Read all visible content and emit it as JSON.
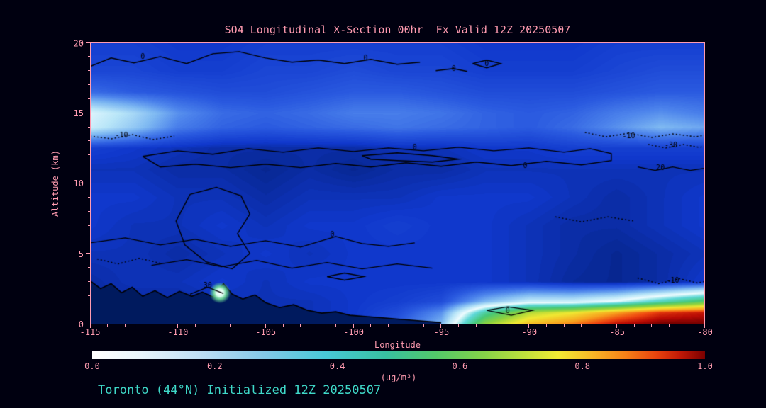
{
  "colors": {
    "background": "#000010",
    "accent_pink": "#ff9bb0",
    "footer_teal": "#3fd9c9",
    "contour_black": "#000000",
    "terrain_navy": "#001a5e"
  },
  "footer": {
    "text": "Toronto (44°N) Initialized 12Z 20250507"
  },
  "axes": {
    "x": {
      "label": "Longitude",
      "ticks": [
        "-115",
        "-110",
        "-105",
        "-100",
        "-95",
        "-90",
        "-85",
        "-80"
      ]
    },
    "y": {
      "label": "Altitude (km)",
      "ticks": [
        "0",
        "5",
        "10",
        "15",
        "20"
      ]
    }
  },
  "colorbar": {
    "ticks": [
      "0.0",
      "0.2",
      "0.4",
      "0.6",
      "0.8",
      "1.0"
    ],
    "units": "(ug/m³)",
    "gradient": [
      [
        0,
        "#ffffff"
      ],
      [
        0.08,
        "#e8f4fc"
      ],
      [
        0.18,
        "#bcdcf4"
      ],
      [
        0.28,
        "#84c8e8"
      ],
      [
        0.38,
        "#48c8d8"
      ],
      [
        0.48,
        "#38c0a0"
      ],
      [
        0.56,
        "#52c86a"
      ],
      [
        0.64,
        "#86d348"
      ],
      [
        0.72,
        "#cce33a"
      ],
      [
        0.76,
        "#f2ec34"
      ],
      [
        0.82,
        "#f8b226"
      ],
      [
        0.87,
        "#f68018"
      ],
      [
        0.92,
        "#e8440e"
      ],
      [
        0.96,
        "#c01806"
      ],
      [
        1,
        "#7a0000"
      ]
    ]
  },
  "chart_data": {
    "type": "heatmap",
    "title": "SO4 Longitudinal X-Section 00hr  Fx Valid 12Z 20250507",
    "xlabel": "Longitude",
    "ylabel": "Altitude (km)",
    "units": "ug/m³",
    "x_range": [
      -115,
      -80
    ],
    "y_range": [
      0,
      20
    ],
    "colorbar_range": [
      0.0,
      1.0
    ],
    "lons": [
      -115,
      -112.5,
      -110,
      -107.5,
      -105,
      -102.5,
      -100,
      -97.5,
      -95,
      -92.5,
      -90,
      -87.5,
      -85,
      -82.5,
      -80
    ],
    "alts": [
      0,
      0.8,
      1.6,
      3,
      5,
      7,
      9,
      11,
      12.5,
      14,
      15,
      16.5,
      18,
      20
    ],
    "values": [
      [
        0.05,
        0.05,
        0.05,
        0.05,
        0.06,
        0.06,
        0.07,
        0.12,
        0.22,
        0.62,
        0.78,
        0.85,
        0.96,
        1.0,
        1.0
      ],
      [
        0.05,
        0.05,
        0.05,
        0.05,
        0.06,
        0.06,
        0.07,
        0.1,
        0.18,
        0.48,
        0.66,
        0.72,
        0.82,
        0.92,
        0.95
      ],
      [
        0.05,
        0.05,
        0.05,
        0.06,
        0.06,
        0.06,
        0.07,
        0.08,
        0.1,
        0.22,
        0.3,
        0.3,
        0.35,
        0.45,
        0.55
      ],
      [
        0.05,
        0.06,
        0.06,
        0.07,
        0.06,
        0.07,
        0.07,
        0.07,
        0.07,
        0.07,
        0.06,
        0.045,
        0.04,
        0.05,
        0.07
      ],
      [
        0.06,
        0.06,
        0.05,
        0.06,
        0.07,
        0.06,
        0.07,
        0.07,
        0.07,
        0.07,
        0.06,
        0.05,
        0.04,
        0.05,
        0.06
      ],
      [
        0.07,
        0.06,
        0.06,
        0.07,
        0.06,
        0.07,
        0.07,
        0.08,
        0.07,
        0.07,
        0.06,
        0.05,
        0.05,
        0.06,
        0.07
      ],
      [
        0.07,
        0.07,
        0.06,
        0.06,
        0.05,
        0.06,
        0.06,
        0.06,
        0.07,
        0.07,
        0.07,
        0.06,
        0.05,
        0.06,
        0.07
      ],
      [
        0.06,
        0.06,
        0.05,
        0.05,
        0.04,
        0.05,
        0.04,
        0.05,
        0.05,
        0.06,
        0.06,
        0.06,
        0.06,
        0.06,
        0.06
      ],
      [
        0.08,
        0.07,
        0.06,
        0.05,
        0.05,
        0.05,
        0.05,
        0.06,
        0.06,
        0.07,
        0.07,
        0.08,
        0.08,
        0.08,
        0.08
      ],
      [
        0.3,
        0.24,
        0.16,
        0.13,
        0.12,
        0.13,
        0.14,
        0.15,
        0.14,
        0.13,
        0.12,
        0.14,
        0.18,
        0.22,
        0.2
      ],
      [
        0.32,
        0.26,
        0.18,
        0.14,
        0.13,
        0.14,
        0.16,
        0.16,
        0.15,
        0.13,
        0.12,
        0.13,
        0.16,
        0.18,
        0.16
      ],
      [
        0.14,
        0.12,
        0.11,
        0.1,
        0.1,
        0.11,
        0.12,
        0.12,
        0.11,
        0.1,
        0.1,
        0.1,
        0.11,
        0.12,
        0.12
      ],
      [
        0.09,
        0.09,
        0.08,
        0.08,
        0.09,
        0.09,
        0.1,
        0.09,
        0.09,
        0.08,
        0.08,
        0.08,
        0.09,
        0.1,
        0.1
      ],
      [
        0.08,
        0.08,
        0.07,
        0.07,
        0.08,
        0.08,
        0.08,
        0.08,
        0.08,
        0.07,
        0.07,
        0.07,
        0.08,
        0.08,
        0.08
      ]
    ],
    "colormap": [
      [
        0,
        "#001850"
      ],
      [
        0.035,
        "#062488"
      ],
      [
        0.07,
        "#1038cc"
      ],
      [
        0.12,
        "#2a5ae0"
      ],
      [
        0.17,
        "#4f86ec"
      ],
      [
        0.22,
        "#7fb9f2"
      ],
      [
        0.28,
        "#b9e6f8"
      ],
      [
        0.34,
        "#eefcff"
      ],
      [
        0.42,
        "#5fd8d8"
      ],
      [
        0.52,
        "#46c878"
      ],
      [
        0.62,
        "#8ed23e"
      ],
      [
        0.72,
        "#f0e832"
      ],
      [
        0.82,
        "#f8a01e"
      ],
      [
        0.9,
        "#ee4410"
      ],
      [
        0.96,
        "#b80a04"
      ],
      [
        1,
        "#700000"
      ]
    ],
    "terrain": [
      [
        -115,
        3.05
      ],
      [
        -114.4,
        2.5
      ],
      [
        -113.8,
        2.85
      ],
      [
        -113.2,
        2.2
      ],
      [
        -112.6,
        2.6
      ],
      [
        -112,
        1.95
      ],
      [
        -111.3,
        2.35
      ],
      [
        -110.6,
        1.85
      ],
      [
        -109.9,
        2.3
      ],
      [
        -109.2,
        1.95
      ],
      [
        -108.6,
        2.25
      ],
      [
        -108,
        1.9
      ],
      [
        -107.4,
        2.85
      ],
      [
        -106.9,
        2.1
      ],
      [
        -106.3,
        1.75
      ],
      [
        -105.6,
        2.05
      ],
      [
        -105,
        1.5
      ],
      [
        -104.2,
        1.15
      ],
      [
        -103.4,
        1.35
      ],
      [
        -102.6,
        0.95
      ],
      [
        -101.8,
        0.75
      ],
      [
        -101,
        0.85
      ],
      [
        -100.2,
        0.6
      ],
      [
        -99.2,
        0.5
      ],
      [
        -98.2,
        0.4
      ],
      [
        -97.2,
        0.3
      ],
      [
        -96.2,
        0.2
      ],
      [
        -95,
        0.08
      ]
    ],
    "hotspot": {
      "lon": -107.6,
      "alt": 2.2,
      "radius_px": 15,
      "stops": [
        [
          0,
          "#ffffff"
        ],
        [
          0.35,
          "#dafdf0"
        ],
        [
          0.6,
          "rgba(110,220,150,0.9)"
        ],
        [
          1,
          "rgba(110,220,150,0)"
        ]
      ]
    },
    "contours": [
      {
        "style": "solid",
        "points": [
          [
            -115,
            18.3
          ],
          [
            -113.8,
            18.9
          ],
          [
            -112.5,
            18.55
          ],
          [
            -111,
            19.0
          ],
          [
            -109.5,
            18.5
          ],
          [
            -108,
            19.2
          ],
          [
            -106.5,
            19.35
          ],
          [
            -105,
            18.9
          ],
          [
            -103.5,
            18.6
          ],
          [
            -102,
            18.75
          ],
          [
            -100.5,
            18.5
          ],
          [
            -99,
            18.8
          ],
          [
            -97.5,
            18.45
          ],
          [
            -96.2,
            18.6
          ]
        ],
        "labels": [
          {
            "text": "0",
            "at": [
              -112,
              18.95
            ]
          },
          {
            "text": "0",
            "at": [
              -99.3,
              18.85
            ]
          }
        ]
      },
      {
        "style": "solid",
        "points": [
          [
            -93.2,
            18.5
          ],
          [
            -92.4,
            18.75
          ],
          [
            -91.6,
            18.5
          ],
          [
            -92.4,
            18.2
          ],
          [
            -93.2,
            18.5
          ]
        ],
        "labels": [
          {
            "text": "0",
            "at": [
              -92.4,
              18.48
            ]
          }
        ]
      },
      {
        "style": "solid",
        "points": [
          [
            -95.3,
            18.0
          ],
          [
            -94.3,
            18.15
          ],
          [
            -93.5,
            17.95
          ]
        ],
        "labels": [
          {
            "text": "-0",
            "at": [
              -94.4,
              18.12
            ]
          }
        ]
      },
      {
        "style": "solid",
        "points": [
          [
            -112,
            11.9
          ],
          [
            -110,
            12.3
          ],
          [
            -108,
            12.05
          ],
          [
            -106,
            12.45
          ],
          [
            -104,
            12.2
          ],
          [
            -102,
            12.5
          ],
          [
            -100,
            12.25
          ],
          [
            -98,
            12.5
          ],
          [
            -96,
            12.3
          ],
          [
            -94,
            12.55
          ],
          [
            -92,
            12.3
          ],
          [
            -90,
            12.5
          ],
          [
            -88,
            12.2
          ],
          [
            -86.5,
            12.45
          ],
          [
            -85.3,
            12.1
          ],
          [
            -85.3,
            11.6
          ],
          [
            -87,
            11.3
          ],
          [
            -89,
            11.55
          ],
          [
            -91,
            11.25
          ],
          [
            -93,
            11.5
          ],
          [
            -95,
            11.2
          ],
          [
            -97,
            11.45
          ],
          [
            -99,
            11.15
          ],
          [
            -101,
            11.4
          ],
          [
            -103,
            11.1
          ],
          [
            -105,
            11.35
          ],
          [
            -107,
            11.1
          ],
          [
            -109,
            11.35
          ],
          [
            -111,
            11.15
          ],
          [
            -112,
            11.9
          ]
        ],
        "labels": [
          {
            "text": "0",
            "at": [
              -96.5,
              12.5
            ]
          },
          {
            "text": "0",
            "at": [
              -90.2,
              11.2
            ]
          }
        ]
      },
      {
        "style": "solid",
        "points": [
          [
            -99.5,
            11.95
          ],
          [
            -97.5,
            12.15
          ],
          [
            -95.5,
            11.95
          ],
          [
            -94,
            11.7
          ],
          [
            -95.5,
            11.5
          ],
          [
            -97.5,
            11.6
          ],
          [
            -99,
            11.7
          ],
          [
            -99.5,
            11.95
          ]
        ],
        "labels": []
      },
      {
        "style": "solid",
        "points": [
          [
            -109.3,
            9.2
          ],
          [
            -107.8,
            9.7
          ],
          [
            -106.4,
            9.1
          ],
          [
            -105.9,
            7.8
          ],
          [
            -106.6,
            6.4
          ],
          [
            -105.9,
            5.0
          ],
          [
            -106.9,
            3.9
          ],
          [
            -108.4,
            4.4
          ],
          [
            -109.6,
            5.6
          ],
          [
            -110.1,
            7.3
          ],
          [
            -109.3,
            9.2
          ]
        ],
        "labels": []
      },
      {
        "style": "solid",
        "points": [
          [
            -115,
            5.75
          ],
          [
            -113,
            6.1
          ],
          [
            -111,
            5.6
          ],
          [
            -109,
            6.0
          ],
          [
            -107,
            5.5
          ],
          [
            -105,
            5.9
          ],
          [
            -103,
            5.45
          ],
          [
            -101,
            6.2
          ],
          [
            -99.5,
            5.7
          ],
          [
            -98,
            5.5
          ],
          [
            -96.5,
            5.75
          ]
        ],
        "labels": [
          {
            "text": "0",
            "at": [
              -101.2,
              6.35
            ]
          }
        ]
      },
      {
        "style": "solid",
        "points": [
          [
            -111.5,
            4.15
          ],
          [
            -109.5,
            4.55
          ],
          [
            -107.5,
            4.05
          ],
          [
            -105.5,
            4.5
          ],
          [
            -103.5,
            3.95
          ],
          [
            -101.5,
            4.35
          ],
          [
            -99.5,
            3.9
          ],
          [
            -97.5,
            4.25
          ],
          [
            -95.5,
            3.95
          ]
        ],
        "labels": []
      },
      {
        "style": "solid",
        "points": [
          [
            -101.5,
            3.35
          ],
          [
            -100.5,
            3.6
          ],
          [
            -99.4,
            3.35
          ],
          [
            -100.5,
            3.1
          ],
          [
            -101.5,
            3.35
          ]
        ],
        "labels": []
      },
      {
        "style": "solid",
        "points": [
          [
            -92.4,
            0.95
          ],
          [
            -91.2,
            1.2
          ],
          [
            -89.8,
            0.95
          ],
          [
            -91.0,
            0.6
          ],
          [
            -92.4,
            0.95
          ]
        ],
        "labels": [
          {
            "text": "0",
            "at": [
              -91.2,
              0.9
            ]
          }
        ]
      },
      {
        "style": "dotted",
        "points": [
          [
            -115,
            13.35
          ],
          [
            -113.8,
            13.15
          ],
          [
            -112.6,
            13.45
          ],
          [
            -111.4,
            13.1
          ],
          [
            -110.2,
            13.35
          ]
        ],
        "labels": [
          {
            "text": "-10",
            "at": [
              -113.2,
              13.4
            ]
          }
        ]
      },
      {
        "style": "dotted",
        "points": [
          [
            -86.8,
            13.6
          ],
          [
            -85.6,
            13.3
          ],
          [
            -84.3,
            13.55
          ],
          [
            -83,
            13.25
          ],
          [
            -81.8,
            13.5
          ],
          [
            -80.5,
            13.3
          ],
          [
            -80,
            13.4
          ]
        ],
        "labels": [
          {
            "text": "-10",
            "at": [
              -84.3,
              13.35
            ]
          }
        ]
      },
      {
        "style": "dotted",
        "points": [
          [
            -83.2,
            12.75
          ],
          [
            -82.2,
            12.5
          ],
          [
            -81.2,
            12.75
          ],
          [
            -80.3,
            12.55
          ],
          [
            -80,
            12.6
          ]
        ],
        "labels": [
          {
            "text": "-30",
            "at": [
              -81.9,
              12.65
            ]
          }
        ]
      },
      {
        "style": "solid",
        "points": [
          [
            -83.8,
            11.15
          ],
          [
            -82.8,
            10.9
          ],
          [
            -81.8,
            11.15
          ],
          [
            -80.8,
            10.9
          ],
          [
            -80,
            11.05
          ]
        ],
        "labels": [
          {
            "text": "20",
            "at": [
              -82.5,
              11.05
            ]
          }
        ]
      },
      {
        "style": "dotted",
        "points": [
          [
            -83.8,
            3.25
          ],
          [
            -82.6,
            2.85
          ],
          [
            -81.4,
            3.2
          ],
          [
            -80.4,
            2.9
          ],
          [
            -80,
            3.0
          ]
        ],
        "labels": [
          {
            "text": "-10",
            "at": [
              -81.8,
              3.05
            ]
          }
        ]
      },
      {
        "style": "solid",
        "points": [
          [
            -109.3,
            2.1
          ],
          [
            -108.3,
            2.6
          ],
          [
            -107.4,
            2.15
          ]
        ],
        "labels": [
          {
            "text": "30",
            "at": [
              -108.3,
              2.7
            ]
          }
        ]
      },
      {
        "style": "dotted",
        "points": [
          [
            -114.6,
            4.6
          ],
          [
            -113.4,
            4.25
          ],
          [
            -112.2,
            4.65
          ],
          [
            -111,
            4.3
          ]
        ],
        "labels": []
      },
      {
        "style": "dotted",
        "points": [
          [
            -88.5,
            7.6
          ],
          [
            -87,
            7.25
          ],
          [
            -85.5,
            7.6
          ],
          [
            -84,
            7.3
          ]
        ],
        "labels": []
      }
    ]
  }
}
